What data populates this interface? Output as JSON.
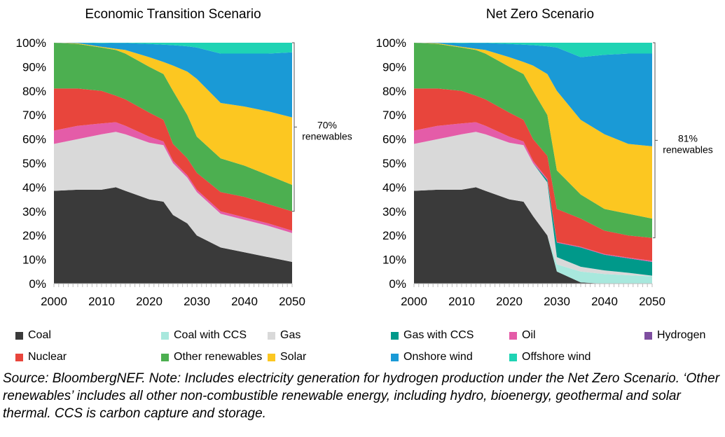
{
  "chart_data": [
    {
      "type": "area",
      "stacked": true,
      "title": "Economic Transition Scenario",
      "xlabel": "",
      "ylabel": "",
      "x": [
        2000,
        2005,
        2010,
        2013,
        2015,
        2020,
        2023,
        2025,
        2028,
        2030,
        2035,
        2040,
        2045,
        2050
      ],
      "xlim": [
        2000,
        2050
      ],
      "ylim": [
        0,
        100
      ],
      "x_ticks": [
        "2000",
        "2010",
        "2020",
        "2030",
        "2040",
        "2050"
      ],
      "y_ticks": [
        "0%",
        "10%",
        "20%",
        "30%",
        "40%",
        "50%",
        "60%",
        "70%",
        "80%",
        "90%",
        "100%"
      ],
      "grid": false,
      "annotation": {
        "value": "70%",
        "label": "renewables",
        "range": [
          30,
          100
        ]
      },
      "series": [
        {
          "name": "Coal",
          "values": [
            38.5,
            39,
            39,
            40,
            38.5,
            35,
            34,
            28.5,
            25,
            20,
            15,
            13,
            11,
            9
          ]
        },
        {
          "name": "Coal with CCS",
          "values": [
            0,
            0,
            0,
            0,
            0,
            0,
            0,
            0,
            0,
            0,
            0,
            0,
            0,
            0
          ]
        },
        {
          "name": "Gas",
          "values": [
            19.5,
            21,
            23,
            23,
            23.5,
            23.5,
            23.5,
            21.5,
            19,
            18,
            14,
            13.5,
            13,
            12
          ]
        },
        {
          "name": "Gas with CCS",
          "values": [
            0,
            0,
            0,
            0,
            0,
            0,
            0,
            0,
            0,
            0,
            0,
            0,
            0,
            0
          ]
        },
        {
          "name": "Oil",
          "values": [
            5.5,
            5.5,
            4.5,
            4,
            3.5,
            2.5,
            1.5,
            1,
            1,
            1,
            1,
            1,
            1,
            1
          ]
        },
        {
          "name": "Hydrogen",
          "values": [
            0,
            0,
            0,
            0,
            0,
            0,
            0,
            0,
            0,
            0,
            0,
            0,
            0,
            0
          ]
        },
        {
          "name": "Nuclear",
          "values": [
            17.5,
            15.5,
            13.5,
            11,
            11,
            10,
            9,
            7,
            7,
            7,
            8,
            8.5,
            8,
            8
          ]
        },
        {
          "name": "Other renewables",
          "values": [
            19,
            18.5,
            18,
            19,
            19,
            19,
            19,
            22,
            18,
            15,
            14,
            13,
            12,
            11
          ]
        },
        {
          "name": "Solar",
          "values": [
            0,
            0.3,
            0.3,
            0.5,
            1.5,
            4,
            5,
            10.5,
            18,
            24,
            23,
            24.5,
            26.5,
            28
          ]
        },
        {
          "name": "Onshore wind",
          "values": [
            0,
            0.2,
            1.5,
            2.4,
            2.9,
            5.5,
            7.2,
            8.5,
            10.5,
            13,
            20.5,
            22,
            24,
            27
          ]
        },
        {
          "name": "Offshore wind",
          "values": [
            0,
            0,
            0.2,
            0.1,
            0.1,
            0.5,
            0.8,
            1,
            1.5,
            2,
            4.5,
            4.5,
            4.5,
            4
          ]
        }
      ]
    },
    {
      "type": "area",
      "stacked": true,
      "title": "Net Zero Scenario",
      "xlabel": "",
      "ylabel": "",
      "x": [
        2000,
        2005,
        2010,
        2013,
        2015,
        2020,
        2023,
        2025,
        2028,
        2030,
        2035,
        2040,
        2045,
        2050
      ],
      "xlim": [
        2000,
        2050
      ],
      "ylim": [
        0,
        100
      ],
      "x_ticks": [
        "2000",
        "2010",
        "2020",
        "2030",
        "2040",
        "2050"
      ],
      "y_ticks": [
        "0%",
        "10%",
        "20%",
        "30%",
        "40%",
        "50%",
        "60%",
        "70%",
        "80%",
        "90%",
        "100%"
      ],
      "grid": false,
      "annotation": {
        "value": "81%",
        "label": "renewables",
        "range": [
          19,
          100
        ]
      },
      "series": [
        {
          "name": "Coal",
          "values": [
            38.5,
            39,
            39,
            40,
            38.5,
            35,
            34,
            28,
            20,
            5,
            0.5,
            0,
            0,
            0
          ]
        },
        {
          "name": "Coal with CCS",
          "values": [
            0,
            0,
            0,
            0,
            0,
            0,
            0,
            0,
            0,
            3,
            4.5,
            4,
            3.5,
            3
          ]
        },
        {
          "name": "Gas",
          "values": [
            19.5,
            21,
            23,
            23,
            23.5,
            23.5,
            23.5,
            22,
            22,
            3,
            2,
            1.5,
            1,
            0.3
          ]
        },
        {
          "name": "Gas with CCS",
          "values": [
            0,
            0,
            0,
            0,
            0,
            0,
            0,
            0,
            1,
            6,
            8,
            6.5,
            6,
            5.7
          ]
        },
        {
          "name": "Oil",
          "values": [
            5.5,
            5.5,
            4.5,
            4,
            3.5,
            2.5,
            1.5,
            1,
            0.5,
            0.3,
            0.3,
            0.3,
            0.3,
            0.5
          ]
        },
        {
          "name": "Hydrogen",
          "values": [
            0,
            0,
            0,
            0,
            0,
            0,
            0,
            0,
            0,
            0,
            0,
            0,
            0,
            0
          ]
        },
        {
          "name": "Nuclear",
          "values": [
            17.5,
            15.5,
            13.5,
            11,
            11,
            10,
            9,
            9,
            9.5,
            13.7,
            11.7,
            9.7,
            9.2,
            9.5
          ]
        },
        {
          "name": "Other renewables",
          "values": [
            19,
            18.5,
            18,
            19,
            19,
            19,
            19,
            20,
            17,
            16,
            10,
            9,
            9,
            8
          ]
        },
        {
          "name": "Solar",
          "values": [
            0,
            0.3,
            0.3,
            0.5,
            1.5,
            4,
            5,
            10.5,
            17,
            33,
            31,
            31,
            29,
            30
          ]
        },
        {
          "name": "Onshore wind",
          "values": [
            0,
            0.2,
            1.5,
            2.4,
            2.9,
            5.5,
            7.2,
            8.5,
            11.5,
            18,
            26,
            33,
            37.5,
            38.5
          ]
        },
        {
          "name": "Offshore wind",
          "values": [
            0,
            0,
            0.2,
            0.1,
            0.1,
            0.5,
            0.8,
            1,
            1.5,
            2,
            6,
            5,
            4.5,
            4.5
          ]
        }
      ]
    }
  ],
  "legend": [
    {
      "label": "Coal",
      "color": "#3a3a3a"
    },
    {
      "label": "Coal with CCS",
      "color": "#a8e8dd"
    },
    {
      "label": "Gas",
      "color": "#d9d9d9"
    },
    {
      "label": "Gas with CCS",
      "color": "#00998a"
    },
    {
      "label": "Oil",
      "color": "#e45ca8"
    },
    {
      "label": "Hydrogen",
      "color": "#7e4ea0"
    },
    {
      "label": "Nuclear",
      "color": "#e8453c"
    },
    {
      "label": "Other renewables",
      "color": "#4caf50"
    },
    {
      "label": "Solar",
      "color": "#fcc721"
    },
    {
      "label": "Onshore wind",
      "color": "#1a9ad6"
    },
    {
      "label": "Offshore wind",
      "color": "#1fd3b4"
    }
  ],
  "source": "Source: BloombergNEF. Note: Includes electricity generation for hydrogen production under the Net Zero Scenario. ‘Other renewables’ includes all other non-combustible renewable energy, including hydro, bioenergy, geothermal and solar thermal. CCS is carbon capture and storage."
}
